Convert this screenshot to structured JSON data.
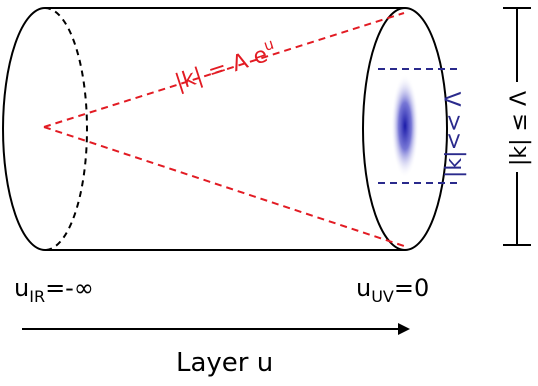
{
  "labels": {
    "red_formula_main": "|k| = Λ e",
    "red_formula_exp": "u",
    "blue_formula": "|k|<< Λ",
    "right_formula": "|k| ≤ Λ",
    "u_ir_base": "u",
    "u_ir_sub": "IR",
    "u_ir_value": "=-∞",
    "u_uv_base": "u",
    "u_uv_sub": "UV",
    "u_uv_value": "=0",
    "axis_label": "Layer u"
  },
  "colors": {
    "outline": "#000000",
    "red_lines": "#e21b23",
    "blue_text": "#2a2a8c",
    "blue_blob": "#2b2bb0"
  }
}
